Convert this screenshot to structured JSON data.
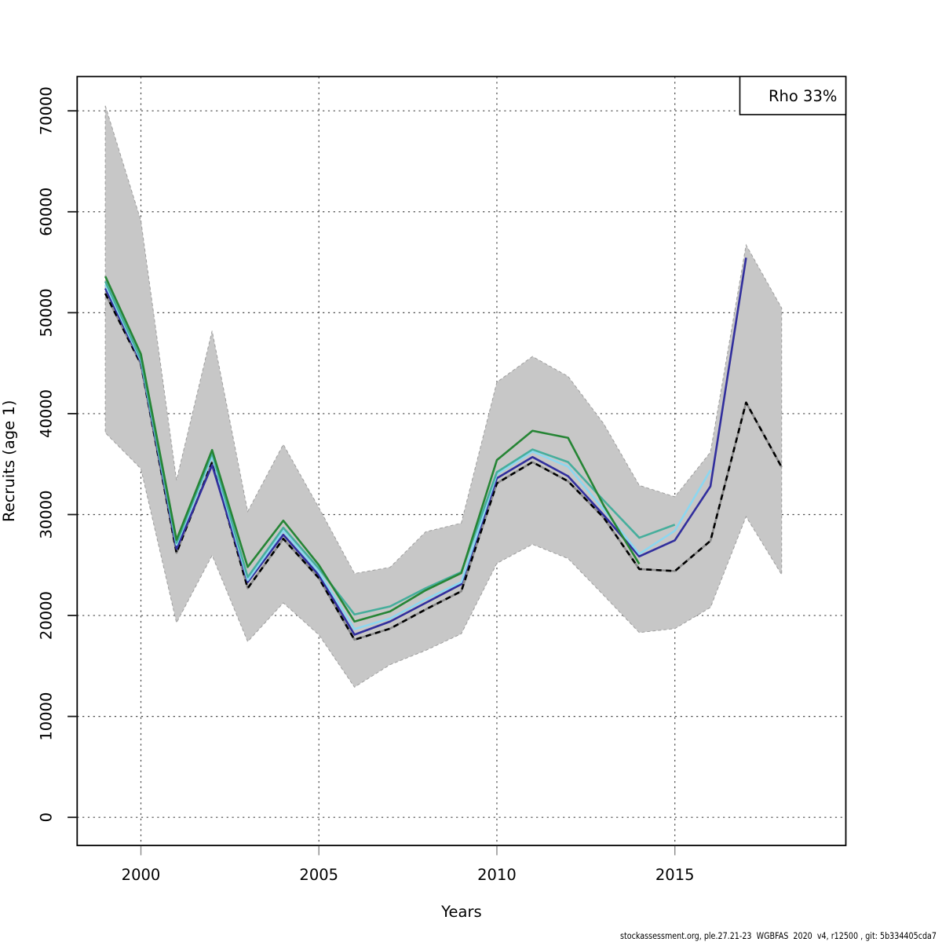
{
  "legend": {
    "label": "Rho 33%"
  },
  "footer": "stockassessment.org, ple.27.21-23  WGBFAS  2020  v4, r12500 , git: 5b334405cda7",
  "chart_data": {
    "type": "line",
    "title": "",
    "xlabel": "Years",
    "ylabel": "Recruits (age 1)",
    "x": [
      1999,
      2000,
      2001,
      2002,
      2003,
      2004,
      2005,
      2006,
      2007,
      2008,
      2009,
      2010,
      2011,
      2012,
      2013,
      2014,
      2015,
      2016,
      2017,
      2018
    ],
    "x_ticks": [
      2000,
      2005,
      2010,
      2015
    ],
    "y_ticks": [
      0,
      10000,
      20000,
      30000,
      40000,
      50000,
      60000,
      70000
    ],
    "ylim": [
      -2800,
      73400
    ],
    "grid": true,
    "legend_position": "top-right",
    "legend_label": "Rho 33%",
    "band": {
      "name": "confidence-interval",
      "fill": "#c7c7c7",
      "border": "#9e9e9e",
      "high": [
        70500,
        59100,
        33400,
        48200,
        30300,
        36950,
        30670,
        24160,
        24770,
        28290,
        29150,
        43120,
        45660,
        43690,
        39000,
        32890,
        31760,
        36180,
        56710,
        50460
      ],
      "low": [
        38100,
        34540,
        19280,
        25960,
        17410,
        21250,
        18080,
        12900,
        15130,
        16540,
        18190,
        25170,
        27050,
        25640,
        22000,
        18310,
        18700,
        20800,
        29800,
        24050
      ]
    },
    "series": [
      {
        "name": "base-run",
        "color": "#000000",
        "undercolor": "#8a8a8a",
        "style": "dashed",
        "values": [
          51900,
          44900,
          26200,
          35200,
          22700,
          27600,
          23700,
          17600,
          18700,
          20600,
          22400,
          33100,
          35200,
          33300,
          29700,
          24600,
          24400,
          27400,
          41100,
          34700
        ]
      },
      {
        "name": "retro-peel-2017",
        "color": "#312e9d",
        "style": "solid",
        "values": [
          52400,
          45100,
          26600,
          34900,
          23300,
          28000,
          24000,
          18100,
          19400,
          21250,
          23100,
          33600,
          35700,
          33800,
          29950,
          25850,
          27450,
          32800,
          55450
        ]
      },
      {
        "name": "retro-peel-2016",
        "color": "#8cd7f0",
        "style": "solid",
        "values": [
          52800,
          45250,
          27000,
          35800,
          23500,
          28400,
          24300,
          18650,
          19700,
          21600,
          23300,
          34000,
          36250,
          34750,
          30500,
          26100,
          28400,
          34400
        ]
      },
      {
        "name": "retro-peel-2015",
        "color": "#46ae9c",
        "style": "solid",
        "values": [
          53100,
          45400,
          27200,
          36100,
          23800,
          28700,
          24650,
          20100,
          20900,
          22700,
          24300,
          34200,
          36450,
          35200,
          31400,
          27700,
          29000
        ]
      },
      {
        "name": "retro-peel-2014",
        "color": "#268535",
        "style": "solid",
        "values": [
          53600,
          45900,
          27500,
          36400,
          24800,
          29400,
          25000,
          19400,
          20400,
          22500,
          24200,
          35400,
          38300,
          37600,
          30900,
          25100
        ]
      }
    ]
  }
}
